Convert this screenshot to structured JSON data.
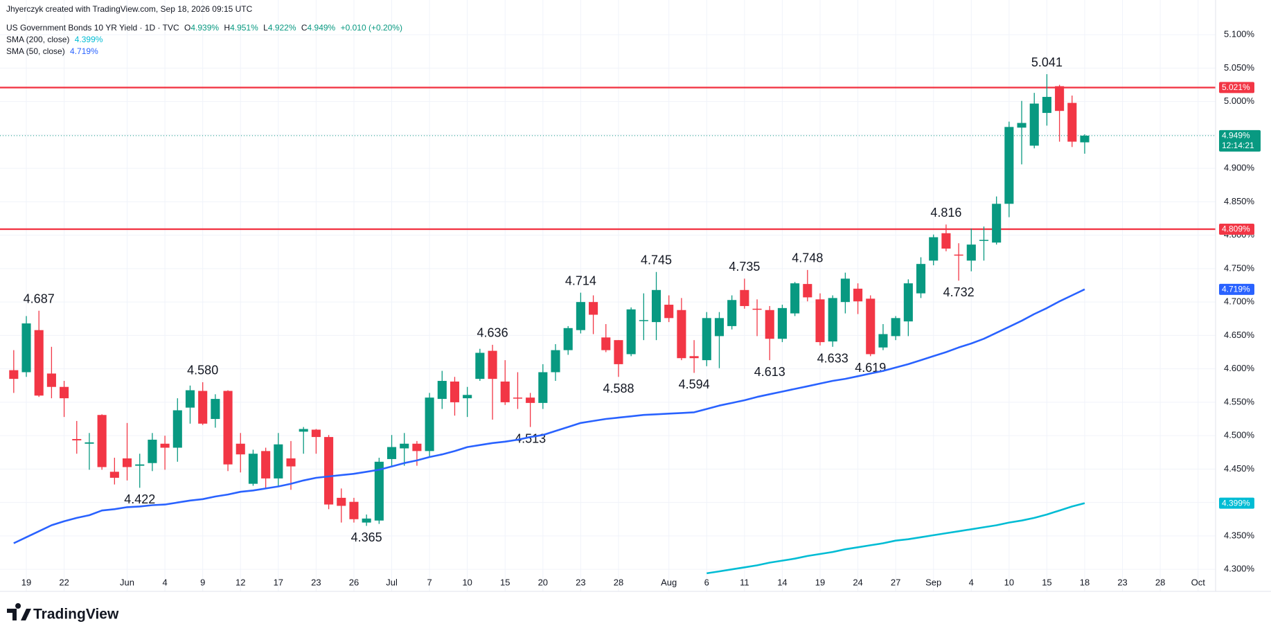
{
  "header": {
    "credit": "Jhyerczyk created with TradingView.com, Sep 18, 2026 09:15 UTC",
    "symbol": "US Government Bonds 10 YR Yield · 1D · TVC",
    "ohlc": [
      {
        "key": "O",
        "value": "4.939%"
      },
      {
        "key": "H",
        "value": "4.951%"
      },
      {
        "key": "L",
        "value": "4.922%"
      },
      {
        "key": "C",
        "value": "4.949%"
      }
    ],
    "change": "+0.010 (+0.20%)"
  },
  "footer": {
    "logo": "TradingView"
  },
  "chart_data": {
    "type": "candlestick",
    "up_color": "#089981",
    "down_color": "#f23645",
    "grid": true,
    "xlim": [
      -1.09,
      95.39
    ],
    "ylim": [
      4.267,
      5.152
    ],
    "xticks": [
      {
        "value": 1,
        "label": "19"
      },
      {
        "value": 4,
        "label": "22"
      },
      {
        "value": 9,
        "label": "Jun"
      },
      {
        "value": 12,
        "label": "4"
      },
      {
        "value": 15,
        "label": "9"
      },
      {
        "value": 18,
        "label": "12"
      },
      {
        "value": 21,
        "label": "17"
      },
      {
        "value": 24,
        "label": "23"
      },
      {
        "value": 27,
        "label": "26"
      },
      {
        "value": 30,
        "label": "Jul"
      },
      {
        "value": 33,
        "label": "7"
      },
      {
        "value": 36,
        "label": "10"
      },
      {
        "value": 39,
        "label": "15"
      },
      {
        "value": 42,
        "label": "20"
      },
      {
        "value": 45,
        "label": "23"
      },
      {
        "value": 48,
        "label": "28"
      },
      {
        "value": 52,
        "label": "Aug"
      },
      {
        "value": 55,
        "label": "6"
      },
      {
        "value": 58,
        "label": "11"
      },
      {
        "value": 61,
        "label": "14"
      },
      {
        "value": 64,
        "label": "19"
      },
      {
        "value": 67,
        "label": "24"
      },
      {
        "value": 70,
        "label": "27"
      },
      {
        "value": 73,
        "label": "Sep"
      },
      {
        "value": 76,
        "label": "4"
      },
      {
        "value": 79,
        "label": "10"
      },
      {
        "value": 82,
        "label": "15"
      },
      {
        "value": 85,
        "label": "18"
      },
      {
        "value": 88,
        "label": "23"
      },
      {
        "value": 91,
        "label": "28"
      },
      {
        "value": 94,
        "label": "Oct"
      }
    ],
    "yticks": [
      {
        "value": 4.3,
        "label": "4.300%"
      },
      {
        "value": 4.35,
        "label": "4.350%"
      },
      {
        "value": 4.4,
        "label": "4.400%"
      },
      {
        "value": 4.45,
        "label": "4.450%"
      },
      {
        "value": 4.5,
        "label": "4.500%"
      },
      {
        "value": 4.55,
        "label": "4.550%"
      },
      {
        "value": 4.6,
        "label": "4.600%"
      },
      {
        "value": 4.65,
        "label": "4.650%"
      },
      {
        "value": 4.7,
        "label": "4.700%"
      },
      {
        "value": 4.75,
        "label": "4.750%"
      },
      {
        "value": 4.8,
        "label": "4.800%"
      },
      {
        "value": 4.85,
        "label": "4.850%"
      },
      {
        "value": 4.9,
        "label": "4.900%"
      },
      {
        "value": 4.95,
        "label": "4.950%"
      },
      {
        "value": 5.0,
        "label": "5.000%"
      },
      {
        "value": 5.05,
        "label": "5.050%"
      },
      {
        "value": 5.1,
        "label": "5.100%"
      }
    ],
    "open": [
      4.598,
      4.595,
      4.658,
      4.593,
      4.573,
      4.495,
      4.488,
      4.531,
      4.446,
      4.466,
      4.455,
      4.459,
      4.488,
      4.482,
      4.542,
      4.567,
      4.525,
      4.567,
      4.488,
      4.428,
      4.477,
      4.436,
      4.466,
      4.506,
      4.509,
      4.498,
      4.407,
      4.401,
      4.37,
      4.373,
      4.465,
      4.481,
      4.488,
      4.477,
      4.555,
      4.581,
      4.556,
      4.585,
      4.627,
      4.581,
      4.557,
      4.557,
      4.549,
      4.595,
      4.628,
      4.658,
      4.7,
      4.647,
      4.643,
      4.622,
      4.672,
      4.67,
      4.696,
      4.688,
      4.619,
      4.613,
      4.649,
      4.664,
      4.718,
      4.69,
      4.688,
      4.645,
      4.683,
      4.727,
      4.704,
      4.641,
      4.7,
      4.72,
      4.705,
      4.632,
      4.649,
      4.671,
      4.713,
      4.762,
      4.803,
      4.771,
      4.762,
      4.792,
      4.789,
      4.847,
      4.961,
      4.934,
      4.983,
      5.023,
      4.998,
      4.939
    ],
    "high": [
      4.628,
      4.679,
      4.687,
      4.633,
      4.582,
      4.522,
      4.504,
      4.532,
      4.467,
      4.519,
      4.473,
      4.504,
      4.5,
      4.556,
      4.575,
      4.58,
      4.562,
      4.568,
      4.504,
      4.479,
      4.482,
      4.504,
      4.492,
      4.513,
      4.51,
      4.501,
      4.421,
      4.407,
      4.382,
      4.467,
      4.501,
      4.504,
      4.492,
      4.564,
      4.597,
      4.588,
      4.573,
      4.63,
      4.636,
      4.613,
      4.595,
      4.564,
      4.607,
      4.637,
      4.664,
      4.714,
      4.71,
      4.667,
      4.643,
      4.692,
      4.713,
      4.745,
      4.71,
      4.706,
      4.643,
      4.685,
      4.685,
      4.71,
      4.735,
      4.704,
      4.694,
      4.696,
      4.73,
      4.748,
      4.713,
      4.71,
      4.744,
      4.728,
      4.71,
      4.667,
      4.679,
      4.734,
      4.767,
      4.801,
      4.816,
      4.788,
      4.81,
      4.813,
      4.858,
      4.97,
      5.001,
      5.013,
      5.041,
      5.025,
      5.009,
      4.951
    ],
    "low": [
      4.564,
      4.588,
      4.558,
      4.556,
      4.528,
      4.473,
      4.449,
      4.449,
      4.427,
      4.433,
      4.422,
      4.447,
      4.449,
      4.461,
      4.518,
      4.516,
      4.512,
      4.447,
      4.445,
      4.425,
      4.42,
      4.425,
      4.419,
      4.473,
      4.473,
      4.39,
      4.37,
      4.37,
      4.365,
      4.368,
      4.455,
      4.455,
      4.455,
      4.467,
      4.54,
      4.53,
      4.528,
      4.582,
      4.524,
      4.546,
      4.54,
      4.513,
      4.54,
      4.582,
      4.621,
      4.653,
      4.652,
      4.625,
      4.588,
      4.619,
      4.643,
      4.643,
      4.67,
      4.613,
      4.594,
      4.604,
      4.601,
      4.659,
      4.69,
      4.649,
      4.613,
      4.64,
      4.679,
      4.701,
      4.635,
      4.633,
      4.683,
      4.682,
      4.619,
      4.628,
      4.643,
      4.649,
      4.706,
      4.755,
      4.776,
      4.732,
      4.746,
      4.762,
      4.786,
      4.827,
      4.906,
      4.93,
      4.964,
      4.94,
      4.932,
      4.922
    ],
    "close": [
      4.585,
      4.668,
      4.56,
      4.573,
      4.556,
      4.493,
      4.49,
      4.453,
      4.437,
      4.453,
      4.457,
      4.494,
      4.482,
      4.538,
      4.568,
      4.518,
      4.555,
      4.457,
      4.472,
      4.473,
      4.436,
      4.487,
      4.454,
      4.51,
      4.498,
      4.397,
      4.395,
      4.375,
      4.376,
      4.461,
      4.483,
      4.488,
      4.477,
      4.557,
      4.582,
      4.55,
      4.561,
      4.624,
      4.585,
      4.55,
      4.556,
      4.549,
      4.595,
      4.628,
      4.661,
      4.7,
      4.681,
      4.628,
      4.607,
      4.689,
      4.673,
      4.718,
      4.676,
      4.616,
      4.616,
      4.676,
      4.676,
      4.703,
      4.694,
      4.689,
      4.645,
      4.691,
      4.728,
      4.707,
      4.64,
      4.706,
      4.735,
      4.701,
      4.622,
      4.652,
      4.676,
      4.728,
      4.757,
      4.797,
      4.78,
      4.77,
      4.786,
      4.793,
      4.847,
      4.962,
      4.968,
      4.997,
      5.007,
      4.986,
      4.94,
      4.949
    ],
    "high_labels": [
      null,
      null,
      "4.687",
      null,
      null,
      null,
      null,
      null,
      null,
      null,
      null,
      null,
      null,
      null,
      null,
      "4.580",
      null,
      null,
      null,
      null,
      null,
      null,
      null,
      null,
      null,
      null,
      null,
      null,
      null,
      null,
      null,
      null,
      null,
      null,
      null,
      null,
      null,
      null,
      "4.636",
      null,
      null,
      null,
      null,
      null,
      null,
      "4.714",
      null,
      null,
      null,
      null,
      null,
      "4.745",
      null,
      null,
      null,
      null,
      null,
      null,
      "4.735",
      null,
      null,
      null,
      null,
      "4.748",
      null,
      null,
      null,
      null,
      null,
      null,
      null,
      null,
      null,
      null,
      "4.816",
      null,
      null,
      null,
      null,
      null,
      null,
      null,
      "5.041",
      null,
      null,
      null
    ],
    "low_labels": [
      null,
      null,
      null,
      null,
      null,
      null,
      null,
      null,
      null,
      null,
      "4.422",
      null,
      null,
      null,
      null,
      null,
      null,
      null,
      null,
      null,
      null,
      null,
      null,
      null,
      null,
      null,
      null,
      null,
      "4.365",
      null,
      null,
      null,
      null,
      null,
      null,
      null,
      null,
      null,
      null,
      null,
      null,
      "4.513",
      null,
      null,
      null,
      null,
      null,
      null,
      "4.588",
      null,
      null,
      null,
      null,
      null,
      "4.594",
      null,
      null,
      null,
      null,
      null,
      "4.613",
      null,
      null,
      null,
      null,
      "4.633",
      null,
      null,
      "4.619",
      null,
      null,
      null,
      null,
      null,
      null,
      "4.732",
      null,
      null,
      null,
      null,
      null,
      null,
      null,
      null,
      null,
      null
    ],
    "series": [
      {
        "name": "SMA (200, close)",
        "color": "#00bcd4",
        "last_label": "4.399%",
        "values": [
          null,
          null,
          null,
          null,
          null,
          null,
          null,
          null,
          null,
          null,
          null,
          null,
          null,
          null,
          null,
          null,
          null,
          null,
          null,
          null,
          null,
          null,
          null,
          null,
          null,
          null,
          null,
          null,
          null,
          null,
          null,
          null,
          null,
          null,
          null,
          null,
          null,
          null,
          null,
          null,
          null,
          null,
          null,
          null,
          null,
          null,
          null,
          null,
          null,
          null,
          null,
          null,
          null,
          null,
          null,
          4.294,
          4.297,
          4.3,
          4.303,
          4.306,
          4.31,
          4.313,
          4.316,
          4.32,
          4.323,
          4.326,
          4.33,
          4.333,
          4.336,
          4.339,
          4.343,
          4.345,
          4.348,
          4.351,
          4.354,
          4.357,
          4.36,
          4.363,
          4.366,
          4.37,
          4.373,
          4.377,
          4.382,
          4.388,
          4.394,
          4.399
        ]
      },
      {
        "name": "SMA (50, close)",
        "color": "#2962ff",
        "last_label": "4.719%",
        "values": [
          4.339,
          4.348,
          4.357,
          4.366,
          4.372,
          4.377,
          4.381,
          4.388,
          4.39,
          4.393,
          4.394,
          4.396,
          4.397,
          4.4,
          4.403,
          4.405,
          4.409,
          4.412,
          4.416,
          4.418,
          4.421,
          4.424,
          4.428,
          4.433,
          4.437,
          4.439,
          4.441,
          4.443,
          4.446,
          4.449,
          4.454,
          4.459,
          4.463,
          4.468,
          4.472,
          4.477,
          4.483,
          4.486,
          4.489,
          4.491,
          4.494,
          4.498,
          4.501,
          4.507,
          4.513,
          4.519,
          4.522,
          4.525,
          4.527,
          4.529,
          4.531,
          4.532,
          4.533,
          4.534,
          4.535,
          4.54,
          4.545,
          4.549,
          4.553,
          4.558,
          4.562,
          4.566,
          4.57,
          4.574,
          4.578,
          4.582,
          4.585,
          4.589,
          4.593,
          4.597,
          4.602,
          4.607,
          4.613,
          4.619,
          4.625,
          4.632,
          4.638,
          4.645,
          4.654,
          4.663,
          4.672,
          4.682,
          4.691,
          4.701,
          4.71,
          4.719
        ]
      }
    ],
    "hlines": [
      {
        "value": 5.021,
        "label": "5.021%",
        "color": "#f23645"
      },
      {
        "value": 4.809,
        "label": "4.809%",
        "color": "#f23645"
      }
    ],
    "last_price": {
      "value": 4.949,
      "label": "4.949%",
      "countdown": "12:14:21",
      "color": "#089981"
    }
  }
}
